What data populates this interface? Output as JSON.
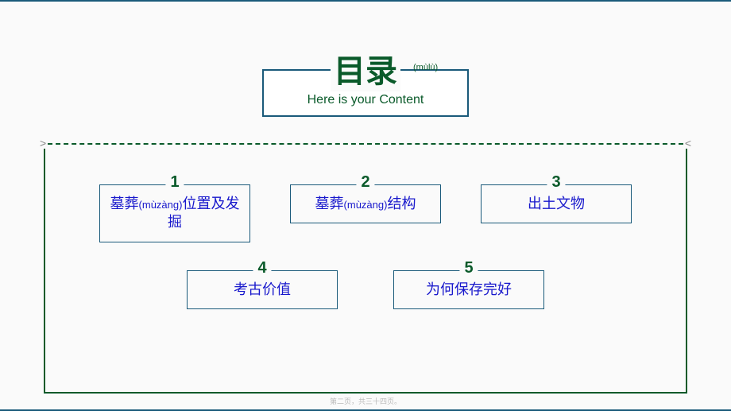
{
  "title": {
    "main": "目录",
    "pinyin": "(mùlù)",
    "subtitle": "Here is your Content"
  },
  "brackets": {
    "left": ">",
    "right": "<"
  },
  "items": [
    {
      "num": "1",
      "text_a": "墓葬",
      "pinyin": "(mùzàng)",
      "text_b": "位置及发掘"
    },
    {
      "num": "2",
      "text_a": "墓葬",
      "pinyin": "(mùzàng)",
      "text_b": "结构"
    },
    {
      "num": "3",
      "text_a": "出土文物",
      "pinyin": "",
      "text_b": ""
    },
    {
      "num": "4",
      "text_a": "考古价值",
      "pinyin": "",
      "text_b": ""
    },
    {
      "num": "5",
      "text_a": "为何保存完好",
      "pinyin": "",
      "text_b": ""
    }
  ],
  "footer": "第二页，共三十四页。",
  "colors": {
    "border": "#1a5a7a",
    "green": "#0a5a2a",
    "blue_text": "#1818cc"
  }
}
